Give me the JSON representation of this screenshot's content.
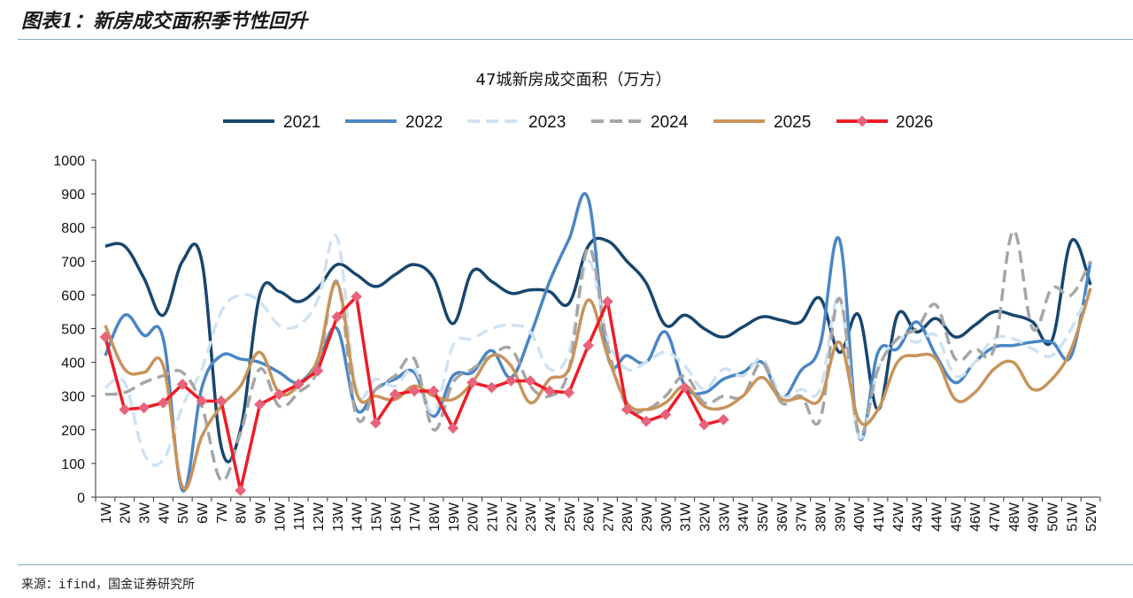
{
  "figure": {
    "title": "图表1：新房成交面积季节性回升",
    "source": "来源：ifind，国金证券研究所"
  },
  "chart_data": {
    "type": "line",
    "title": "47城新房成交面积（万方）",
    "xlabel": "",
    "ylabel": "",
    "ylim": [
      0,
      1000
    ],
    "yticks": [
      0,
      100,
      200,
      300,
      400,
      500,
      600,
      700,
      800,
      900,
      1000
    ],
    "grid": false,
    "legend_position": "top",
    "categories": [
      "1W",
      "2W",
      "3W",
      "4W",
      "5W",
      "6W",
      "7W",
      "8W",
      "9W",
      "10W",
      "11W",
      "12W",
      "13W",
      "14W",
      "15W",
      "16W",
      "17W",
      "18W",
      "19W",
      "20W",
      "21W",
      "22W",
      "23W",
      "24W",
      "25W",
      "26W",
      "27W",
      "28W",
      "29W",
      "30W",
      "31W",
      "32W",
      "33W",
      "34W",
      "35W",
      "36W",
      "37W",
      "38W",
      "39W",
      "40W",
      "41W",
      "42W",
      "43W",
      "44W",
      "45W",
      "46W",
      "47W",
      "48W",
      "49W",
      "50W",
      "51W",
      "52W"
    ],
    "series": [
      {
        "name": "2021",
        "color": "#17466f",
        "style": "solid",
        "values": [
          745,
          745,
          650,
          540,
          700,
          700,
          150,
          200,
          600,
          610,
          580,
          620,
          690,
          660,
          625,
          660,
          690,
          650,
          515,
          670,
          640,
          605,
          615,
          610,
          575,
          745,
          760,
          700,
          635,
          510,
          540,
          500,
          475,
          505,
          535,
          525,
          520,
          590,
          430,
          540,
          260,
          540,
          490,
          530,
          475,
          510,
          550,
          540,
          520,
          465,
          760,
          630
        ]
      },
      {
        "name": "2022",
        "color": "#4a86c5",
        "style": "solid",
        "values": [
          420,
          540,
          480,
          470,
          20,
          325,
          420,
          410,
          400,
          370,
          340,
          400,
          500,
          260,
          320,
          350,
          370,
          240,
          360,
          370,
          435,
          355,
          480,
          640,
          765,
          885,
          420,
          420,
          400,
          490,
          330,
          310,
          350,
          370,
          400,
          295,
          375,
          450,
          765,
          180,
          430,
          440,
          520,
          420,
          340,
          400,
          445,
          450,
          460,
          460,
          420,
          700
        ]
      },
      {
        "name": "2023",
        "color": "#cfe2f3",
        "style": "dashed",
        "values": [
          325,
          340,
          130,
          110,
          270,
          380,
          550,
          600,
          580,
          510,
          510,
          585,
          770,
          320,
          350,
          330,
          380,
          250,
          450,
          470,
          500,
          510,
          490,
          380,
          430,
          700,
          470,
          380,
          400,
          430,
          390,
          320,
          380,
          360,
          410,
          300,
          320,
          320,
          590,
          180,
          380,
          470,
          460,
          480,
          360,
          400,
          470,
          470,
          440,
          420,
          500,
          620
        ]
      },
      {
        "name": "2024",
        "color": "#a6a6a6",
        "style": "dashed",
        "values": [
          305,
          310,
          340,
          360,
          370,
          270,
          50,
          190,
          380,
          270,
          310,
          380,
          640,
          240,
          320,
          360,
          410,
          200,
          340,
          380,
          420,
          440,
          330,
          300,
          380,
          740,
          450,
          270,
          260,
          300,
          360,
          280,
          300,
          300,
          400,
          280,
          300,
          230,
          590,
          190,
          380,
          470,
          500,
          570,
          410,
          440,
          440,
          790,
          500,
          620,
          600,
          700
        ]
      },
      {
        "name": "2025",
        "color": "#c8935a",
        "style": "solid",
        "values": [
          510,
          380,
          370,
          390,
          30,
          180,
          270,
          330,
          430,
          310,
          330,
          410,
          635,
          310,
          300,
          290,
          330,
          300,
          290,
          340,
          420,
          390,
          280,
          350,
          380,
          585,
          420,
          280,
          260,
          280,
          330,
          270,
          265,
          300,
          355,
          290,
          295,
          290,
          460,
          230,
          260,
          400,
          420,
          410,
          290,
          310,
          380,
          400,
          320,
          350,
          440,
          620
        ]
      },
      {
        "name": "2026",
        "color": "#ee1c25",
        "style": "solid-marker",
        "values": [
          475,
          260,
          265,
          280,
          335,
          285,
          285,
          20,
          275,
          305,
          335,
          375,
          535,
          595,
          220,
          305,
          315,
          315,
          205,
          340,
          325,
          345,
          345,
          315,
          310,
          450,
          580,
          260,
          225,
          245,
          325,
          215,
          230,
          null,
          null,
          null,
          null,
          null,
          null,
          null,
          null,
          null,
          null,
          null,
          null,
          null,
          null,
          null,
          null,
          null,
          null,
          null
        ]
      }
    ]
  }
}
